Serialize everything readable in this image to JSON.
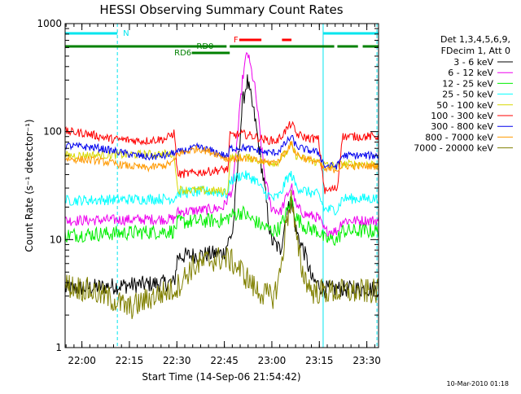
{
  "chart_data": {
    "type": "line",
    "title": "HESSI Observing Summary Count Rates",
    "xlabel": "Start Time (14-Sep-06 21:54:42)",
    "ylabel": "Count Rate (s⁻¹ detector⁻¹)",
    "yscale": "log",
    "xlim_minutes_after_start": [
      0,
      99
    ],
    "ylim": [
      1,
      1000
    ],
    "x_ticks": [
      {
        "label": "22:00",
        "min": 5.3
      },
      {
        "label": "22:15",
        "min": 20.3
      },
      {
        "label": "22:30",
        "min": 35.3
      },
      {
        "label": "22:45",
        "min": 50.3
      },
      {
        "label": "23:00",
        "min": 65.3
      },
      {
        "label": "23:15",
        "min": 80.3
      },
      {
        "label": "23:30",
        "min": 95.3
      }
    ],
    "y_ticks": [
      {
        "label": "1",
        "value": 1
      },
      {
        "label": "10",
        "value": 10
      },
      {
        "label": "100",
        "value": 100
      },
      {
        "label": "1000",
        "value": 1000
      }
    ],
    "legend_header": [
      "Det 1,3,4,5,6,9,",
      "FDecim 1, Att 0"
    ],
    "legend_position": "right",
    "footer": "10-Mar-2010 01:18",
    "series": [
      {
        "name": "3 - 6 keV",
        "color": "#000000",
        "noise": 0.08,
        "points": [
          [
            0,
            3.5
          ],
          [
            34.5,
            4
          ],
          [
            35.5,
            7
          ],
          [
            50,
            7.5
          ],
          [
            53,
            12
          ],
          [
            56,
            180
          ],
          [
            57.5,
            300
          ],
          [
            60,
            130
          ],
          [
            63,
            30
          ],
          [
            65,
            10
          ],
          [
            68,
            8
          ],
          [
            70,
            18
          ],
          [
            71.5,
            22
          ],
          [
            73,
            12
          ],
          [
            76,
            7
          ],
          [
            78,
            4.2
          ],
          [
            82,
            3.5
          ],
          [
            99,
            3.5
          ]
        ]
      },
      {
        "name": "6 - 12 keV",
        "color": "#ee00ee",
        "noise": 0.05,
        "points": [
          [
            0,
            15
          ],
          [
            34.5,
            15.5
          ],
          [
            35.5,
            18
          ],
          [
            46,
            19
          ],
          [
            50,
            20
          ],
          [
            53,
            30
          ],
          [
            56,
            300
          ],
          [
            57.5,
            560
          ],
          [
            60,
            250
          ],
          [
            63,
            40
          ],
          [
            65,
            20
          ],
          [
            68,
            18
          ],
          [
            70,
            25
          ],
          [
            71.5,
            32
          ],
          [
            73,
            20
          ],
          [
            76,
            17
          ],
          [
            80,
            16
          ],
          [
            82,
            12
          ],
          [
            86,
            12
          ],
          [
            87.5,
            15
          ],
          [
            99,
            15
          ]
        ]
      },
      {
        "name": "12 - 25 keV",
        "color": "#00ee00",
        "noise": 0.07,
        "points": [
          [
            0,
            11
          ],
          [
            34.5,
            12
          ],
          [
            35.5,
            14.5
          ],
          [
            46,
            15
          ],
          [
            50,
            15
          ],
          [
            53,
            17
          ],
          [
            56,
            18
          ],
          [
            58,
            16
          ],
          [
            63,
            13
          ],
          [
            66,
            12
          ],
          [
            68,
            13
          ],
          [
            70,
            18
          ],
          [
            71.5,
            24
          ],
          [
            73,
            16
          ],
          [
            76,
            13
          ],
          [
            80,
            12
          ],
          [
            82,
            10
          ],
          [
            86,
            10
          ],
          [
            87.5,
            12
          ],
          [
            99,
            12
          ]
        ]
      },
      {
        "name": "25 - 50 keV",
        "color": "#00ffff",
        "noise": 0.05,
        "points": [
          [
            0,
            23
          ],
          [
            34.5,
            24
          ],
          [
            35.5,
            27
          ],
          [
            46,
            28
          ],
          [
            50,
            27
          ],
          [
            51.5,
            26
          ],
          [
            52,
            35
          ],
          [
            56,
            40
          ],
          [
            60,
            36
          ],
          [
            63,
            27
          ],
          [
            66,
            24
          ],
          [
            68,
            26
          ],
          [
            70,
            37
          ],
          [
            71.5,
            40
          ],
          [
            73,
            31
          ],
          [
            76,
            28
          ],
          [
            80,
            26
          ],
          [
            82,
            19
          ],
          [
            86,
            19
          ],
          [
            87.5,
            24
          ],
          [
            99,
            24
          ]
        ]
      },
      {
        "name": "50 - 100 keV",
        "color": "#d8d800",
        "noise": 0.04,
        "points": [
          [
            0,
            60
          ],
          [
            34.5,
            62
          ],
          [
            35.5,
            29
          ],
          [
            51.5,
            28
          ],
          [
            52,
            57
          ],
          [
            56,
            58
          ],
          [
            60,
            56
          ],
          [
            63,
            52
          ],
          [
            67,
            52
          ],
          [
            70,
            65
          ],
          [
            71.5,
            73
          ],
          [
            73,
            60
          ],
          [
            76,
            55
          ],
          [
            80,
            52
          ],
          [
            82,
            49
          ],
          [
            86,
            48
          ],
          [
            87.5,
            50
          ],
          [
            99,
            50
          ]
        ]
      },
      {
        "name": "100 - 300 keV",
        "color": "#ff0000",
        "noise": 0.04,
        "points": [
          [
            0,
            100
          ],
          [
            6,
            97
          ],
          [
            15,
            85
          ],
          [
            25,
            82
          ],
          [
            32,
            86
          ],
          [
            34.5,
            98
          ],
          [
            35.5,
            40
          ],
          [
            46,
            43
          ],
          [
            51.5,
            45
          ],
          [
            52,
            92
          ],
          [
            56,
            95
          ],
          [
            60,
            90
          ],
          [
            63,
            84
          ],
          [
            67,
            82
          ],
          [
            70,
            105
          ],
          [
            71.5,
            120
          ],
          [
            73,
            95
          ],
          [
            76,
            88
          ],
          [
            80,
            85
          ],
          [
            82,
            28
          ],
          [
            86,
            30
          ],
          [
            87.5,
            90
          ],
          [
            99,
            90
          ]
        ]
      },
      {
        "name": "300 - 800 keV",
        "color": "#0000ee",
        "noise": 0.035,
        "points": [
          [
            0,
            74
          ],
          [
            10,
            71
          ],
          [
            20,
            62
          ],
          [
            26,
            58
          ],
          [
            32,
            60
          ],
          [
            34.5,
            64
          ],
          [
            35.5,
            64
          ],
          [
            42,
            72
          ],
          [
            48,
            64
          ],
          [
            51.5,
            58
          ],
          [
            52,
            70
          ],
          [
            56,
            71
          ],
          [
            60,
            68
          ],
          [
            63,
            64
          ],
          [
            67,
            64
          ],
          [
            70,
            80
          ],
          [
            71.5,
            90
          ],
          [
            73,
            73
          ],
          [
            76,
            68
          ],
          [
            80,
            64
          ],
          [
            82,
            48
          ],
          [
            86,
            48
          ],
          [
            87.5,
            60
          ],
          [
            99,
            60
          ]
        ]
      },
      {
        "name": "800 - 7000 keV",
        "color": "#ff9900",
        "noise": 0.035,
        "points": [
          [
            0,
            56
          ],
          [
            10,
            54
          ],
          [
            20,
            48
          ],
          [
            26,
            46
          ],
          [
            32,
            49
          ],
          [
            34.5,
            53
          ],
          [
            35.5,
            62
          ],
          [
            42,
            70
          ],
          [
            48,
            62
          ],
          [
            51.5,
            55
          ],
          [
            52,
            56
          ],
          [
            56,
            57
          ],
          [
            60,
            54
          ],
          [
            63,
            52
          ],
          [
            67,
            52
          ],
          [
            70,
            68
          ],
          [
            71.5,
            78
          ],
          [
            73,
            62
          ],
          [
            76,
            56
          ],
          [
            80,
            52
          ],
          [
            82,
            44
          ],
          [
            86,
            45
          ],
          [
            87.5,
            48
          ],
          [
            99,
            48
          ]
        ]
      },
      {
        "name": "7000 - 20000 keV",
        "color": "#808000",
        "noise": 0.12,
        "points": [
          [
            0,
            3.8
          ],
          [
            6,
            3.5
          ],
          [
            10,
            3.2
          ],
          [
            16,
            2.7
          ],
          [
            20,
            2.3
          ],
          [
            24,
            2.6
          ],
          [
            28,
            3.0
          ],
          [
            34.5,
            3.5
          ],
          [
            35.5,
            3.7
          ],
          [
            40,
            5.5
          ],
          [
            46,
            6.5
          ],
          [
            50,
            6.7
          ],
          [
            52,
            6.5
          ],
          [
            56,
            5.0
          ],
          [
            60,
            3.5
          ],
          [
            64,
            3.0
          ],
          [
            66,
            3.0
          ],
          [
            68,
            5
          ],
          [
            70,
            15
          ],
          [
            71.5,
            25
          ],
          [
            73,
            10
          ],
          [
            75,
            5
          ],
          [
            78,
            3.3
          ],
          [
            86,
            3.3
          ],
          [
            99,
            3.3
          ]
        ]
      }
    ],
    "flags": [
      {
        "label": "N",
        "color": "#00e5ee",
        "bars": [
          [
            0,
            16.5
          ],
          [
            81.5,
            99
          ]
        ],
        "label_at": 18.3
      },
      {
        "label": "F",
        "color": "#ff0000",
        "bars": [
          [
            55,
            62
          ],
          [
            68.5,
            71.5
          ]
        ],
        "label_at": 53.2
      },
      {
        "label": "RD0",
        "color": "#008000",
        "bars": [
          [
            0,
            51
          ],
          [
            52,
            85
          ],
          [
            86,
            92.5
          ],
          [
            94,
            99
          ]
        ],
        "label_at": 41.5
      },
      {
        "label": "RD6",
        "color": "#008000",
        "bars": [
          [
            40,
            52
          ]
        ],
        "label_at": 34.5
      }
    ],
    "v_markers": [
      {
        "min": 0,
        "color": "#00e5ee",
        "style": "solid"
      },
      {
        "min": 16.5,
        "color": "#00e5ee",
        "style": "dashed"
      },
      {
        "min": 81.5,
        "color": "#00e5ee",
        "style": "solid"
      },
      {
        "min": 98.5,
        "color": "#00e5ee",
        "style": "dashed"
      }
    ]
  }
}
